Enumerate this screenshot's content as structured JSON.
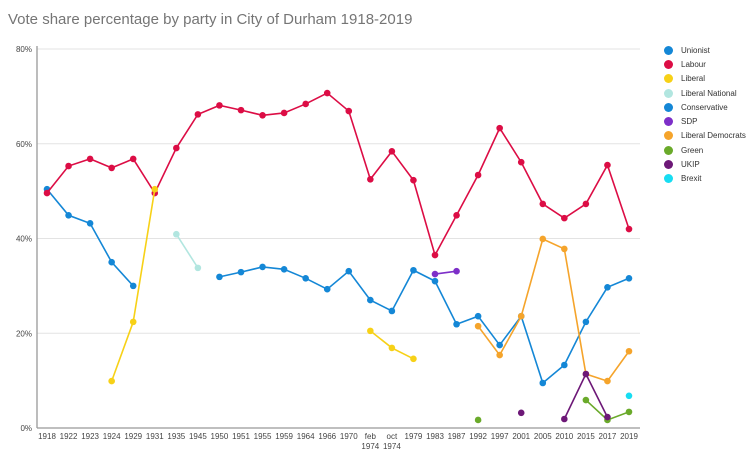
{
  "chart_data": {
    "type": "line",
    "title": "Vote share percentage by party in City of Durham 1918-2019",
    "xlabel": "",
    "ylabel": "",
    "ylim": [
      0,
      80
    ],
    "yticks": [
      "0%",
      "20%",
      "40%",
      "60%",
      "80%"
    ],
    "grid": true,
    "legend_position": "right",
    "categories": [
      "1918",
      "1922",
      "1923",
      "1924",
      "1929",
      "1931",
      "1935",
      "1945",
      "1950",
      "1951",
      "1955",
      "1959",
      "1964",
      "1966",
      "1970",
      "feb 1974",
      "oct 1974",
      "1979",
      "1983",
      "1987",
      "1992",
      "1997",
      "2001",
      "2005",
      "2010",
      "2015",
      "2017",
      "2019"
    ],
    "series": [
      {
        "name": "Unionist",
        "color": "#1487d6",
        "values": [
          50.4,
          44.9,
          43.2,
          35.0,
          30.0,
          null,
          null,
          null,
          null,
          null,
          null,
          null,
          null,
          null,
          null,
          null,
          null,
          null,
          null,
          null,
          null,
          null,
          null,
          null,
          null,
          null,
          null,
          null
        ]
      },
      {
        "name": "Labour",
        "color": "#dc0d45",
        "values": [
          49.6,
          55.3,
          56.8,
          54.9,
          56.8,
          49.6,
          59.1,
          66.2,
          68.1,
          67.1,
          66.0,
          66.5,
          68.4,
          70.7,
          66.9,
          52.5,
          58.4,
          52.3,
          36.5,
          44.9,
          53.4,
          63.3,
          56.1,
          47.3,
          44.3,
          47.3,
          55.5,
          42.0
        ]
      },
      {
        "name": "Liberal",
        "color": "#f7d117",
        "values": [
          null,
          null,
          null,
          9.9,
          22.4,
          50.4,
          null,
          null,
          null,
          null,
          null,
          null,
          null,
          null,
          null,
          20.5,
          16.9,
          14.6,
          null,
          null,
          null,
          null,
          null,
          null,
          null,
          null,
          null,
          null
        ]
      },
      {
        "name": "Liberal National",
        "color": "#b2e6e0",
        "values": [
          null,
          null,
          null,
          null,
          null,
          null,
          40.9,
          33.8,
          null,
          null,
          null,
          null,
          null,
          null,
          null,
          null,
          null,
          null,
          null,
          null,
          null,
          null,
          null,
          null,
          null,
          null,
          null,
          null
        ]
      },
      {
        "name": "Conservative",
        "color": "#1487d6",
        "values": [
          null,
          null,
          null,
          null,
          null,
          null,
          null,
          null,
          31.9,
          32.9,
          34.0,
          33.5,
          31.6,
          29.3,
          33.1,
          27.0,
          24.7,
          33.3,
          31.0,
          21.9,
          23.6,
          17.5,
          23.6,
          9.5,
          13.3,
          22.4,
          29.7,
          31.6
        ]
      },
      {
        "name": "SDP",
        "color": "#7d2fc8",
        "values": [
          null,
          null,
          null,
          null,
          null,
          null,
          null,
          null,
          null,
          null,
          null,
          null,
          null,
          null,
          null,
          null,
          null,
          null,
          32.5,
          33.1,
          null,
          null,
          null,
          null,
          null,
          null,
          null,
          null
        ]
      },
      {
        "name": "Liberal Democrats",
        "color": "#f5a42b",
        "values": [
          null,
          null,
          null,
          null,
          null,
          null,
          null,
          null,
          null,
          null,
          null,
          null,
          null,
          null,
          null,
          null,
          null,
          null,
          null,
          null,
          21.5,
          15.4,
          23.6,
          39.9,
          37.8,
          11.4,
          9.9,
          16.2
        ]
      },
      {
        "name": "Green",
        "color": "#6aaa2a",
        "values": [
          null,
          null,
          null,
          null,
          null,
          null,
          null,
          null,
          null,
          null,
          null,
          null,
          null,
          null,
          null,
          null,
          null,
          null,
          null,
          null,
          1.7,
          null,
          null,
          null,
          null,
          5.9,
          1.7,
          3.4
        ]
      },
      {
        "name": "UKIP",
        "color": "#6d1877",
        "values": [
          null,
          null,
          null,
          null,
          null,
          null,
          null,
          null,
          null,
          null,
          null,
          null,
          null,
          null,
          null,
          null,
          null,
          null,
          null,
          null,
          null,
          null,
          3.2,
          null,
          1.9,
          11.4,
          2.3,
          null
        ]
      },
      {
        "name": "Brexit",
        "color": "#17ddf2",
        "values": [
          null,
          null,
          null,
          null,
          null,
          null,
          null,
          null,
          null,
          null,
          null,
          null,
          null,
          null,
          null,
          null,
          null,
          null,
          null,
          null,
          null,
          null,
          null,
          null,
          null,
          null,
          null,
          6.8
        ]
      }
    ]
  }
}
